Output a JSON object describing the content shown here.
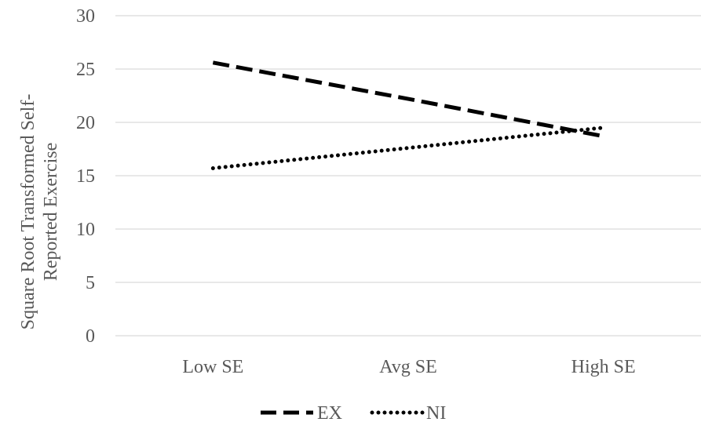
{
  "chart_data": {
    "type": "line",
    "categories": [
      "Low SE",
      "Avg SE",
      "High SE"
    ],
    "series": [
      {
        "name": "EX",
        "values": [
          25.6,
          22.2,
          18.7
        ],
        "color": "#000000",
        "dash": "dashed"
      },
      {
        "name": "NI",
        "values": [
          15.7,
          17.6,
          19.5
        ],
        "color": "#000000",
        "dash": "dotted"
      }
    ],
    "ylabel_lines": [
      "Square Root Transformed Self-",
      "Reported Exercise"
    ],
    "ylim": [
      0,
      30
    ],
    "yticks": [
      "0",
      "5",
      "10",
      "15",
      "20",
      "25",
      "30"
    ],
    "grid": true,
    "legend_position": "bottom"
  }
}
